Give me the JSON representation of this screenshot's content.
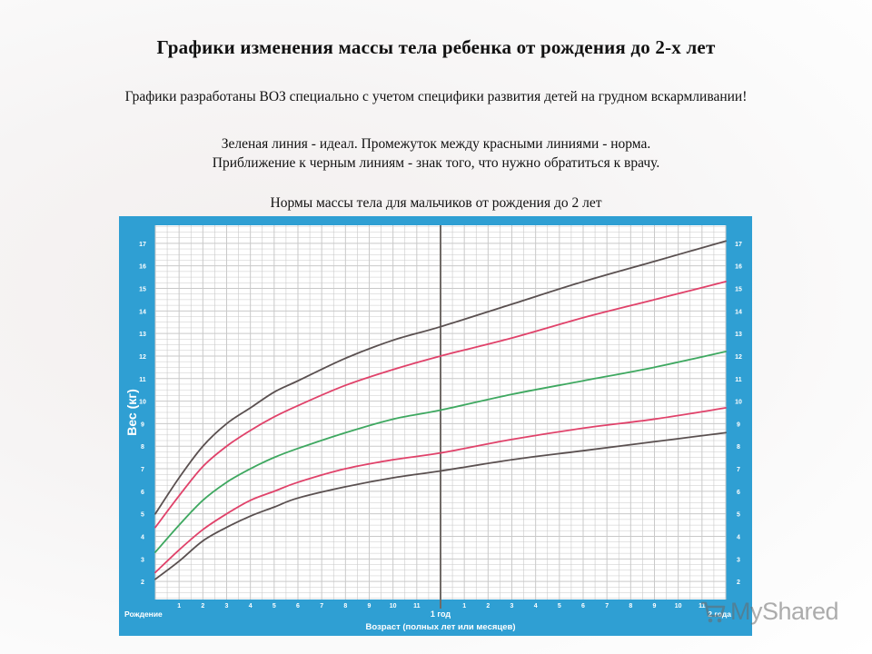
{
  "page": {
    "title": "Графики изменения массы тела ребенка от рождения до 2-х лет",
    "subtitle": "Графики разработаны ВОЗ специально с учетом специфики развития детей на грудном вскармливании!",
    "legend_line1": "Зеленая линия - идеал. Промежуток между красными линиями - норма.",
    "legend_line2": "Приближение к черным линиям - знак того, что нужно обратиться к врачу.",
    "chart_caption": "Нормы массы тела для мальчиков от рождения до 2 лет"
  },
  "watermark": {
    "text": "MyShared",
    "icon": "cart-icon"
  },
  "chart_data": {
    "type": "line",
    "xlabel": "Возраст (полных лет или месяцев)",
    "ylabel": "Вес (кг)",
    "x_start_label": "Рождение",
    "x_mid_label": "1 год",
    "x_end_label": "2 года",
    "xlim": [
      0,
      24
    ],
    "ylim": [
      1.2,
      17.8
    ],
    "x_ticks": [
      0,
      1,
      2,
      3,
      4,
      5,
      6,
      7,
      8,
      9,
      10,
      11,
      12,
      13,
      14,
      15,
      16,
      17,
      18,
      19,
      20,
      21,
      22,
      23,
      24
    ],
    "x_tick_labels": [
      "",
      "1",
      "2",
      "3",
      "4",
      "5",
      "6",
      "7",
      "8",
      "9",
      "10",
      "11",
      "",
      "1",
      "2",
      "3",
      "4",
      "5",
      "6",
      "7",
      "8",
      "9",
      "10",
      "11",
      ""
    ],
    "y_ticks": [
      2,
      3,
      4,
      5,
      6,
      7,
      8,
      9,
      10,
      11,
      12,
      13,
      14,
      15,
      16,
      17
    ],
    "grid": true,
    "colors": {
      "background": "#2f9fd3",
      "grid_area": "#ffffff",
      "grid_line": "#c9c9c9",
      "black_line": "#5a5050",
      "red_line": "#e0426a",
      "green_line": "#3ea860"
    },
    "series": [
      {
        "color_role": "black",
        "x": [
          0,
          1,
          2,
          3,
          4,
          5,
          6,
          8,
          10,
          12,
          15,
          18,
          21,
          24
        ],
        "values": [
          2.1,
          2.9,
          3.8,
          4.4,
          4.9,
          5.3,
          5.7,
          6.2,
          6.6,
          6.9,
          7.4,
          7.8,
          8.2,
          8.6
        ]
      },
      {
        "color_role": "red",
        "x": [
          0,
          1,
          2,
          3,
          4,
          5,
          6,
          8,
          10,
          12,
          15,
          18,
          21,
          24
        ],
        "values": [
          2.4,
          3.4,
          4.3,
          5.0,
          5.6,
          6.0,
          6.4,
          7.0,
          7.4,
          7.7,
          8.3,
          8.8,
          9.2,
          9.7
        ]
      },
      {
        "color_role": "green",
        "x": [
          0,
          1,
          2,
          3,
          4,
          5,
          6,
          8,
          10,
          12,
          15,
          18,
          21,
          24
        ],
        "values": [
          3.3,
          4.5,
          5.6,
          6.4,
          7.0,
          7.5,
          7.9,
          8.6,
          9.2,
          9.6,
          10.3,
          10.9,
          11.5,
          12.2
        ]
      },
      {
        "color_role": "red",
        "x": [
          0,
          1,
          2,
          3,
          4,
          5,
          6,
          8,
          10,
          12,
          15,
          18,
          21,
          24
        ],
        "values": [
          4.4,
          5.8,
          7.1,
          8.0,
          8.7,
          9.3,
          9.8,
          10.7,
          11.4,
          12.0,
          12.8,
          13.7,
          14.5,
          15.3
        ]
      },
      {
        "color_role": "black",
        "x": [
          0,
          1,
          2,
          3,
          4,
          5,
          6,
          8,
          10,
          12,
          15,
          18,
          21,
          24
        ],
        "values": [
          5.0,
          6.6,
          8.0,
          9.0,
          9.7,
          10.4,
          10.9,
          11.9,
          12.7,
          13.3,
          14.3,
          15.3,
          16.2,
          17.1
        ]
      }
    ]
  }
}
